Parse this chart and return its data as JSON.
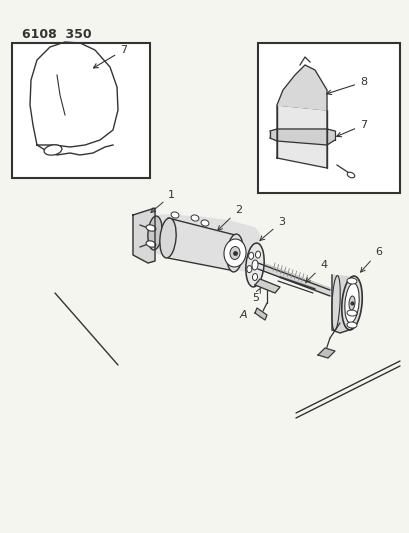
{
  "title": "6108  350",
  "bg_color": "#f5f5f0",
  "line_color": "#333333",
  "title_fontsize": 9,
  "label_fontsize": 7,
  "fig_width": 4.1,
  "fig_height": 5.33,
  "dpi": 100
}
